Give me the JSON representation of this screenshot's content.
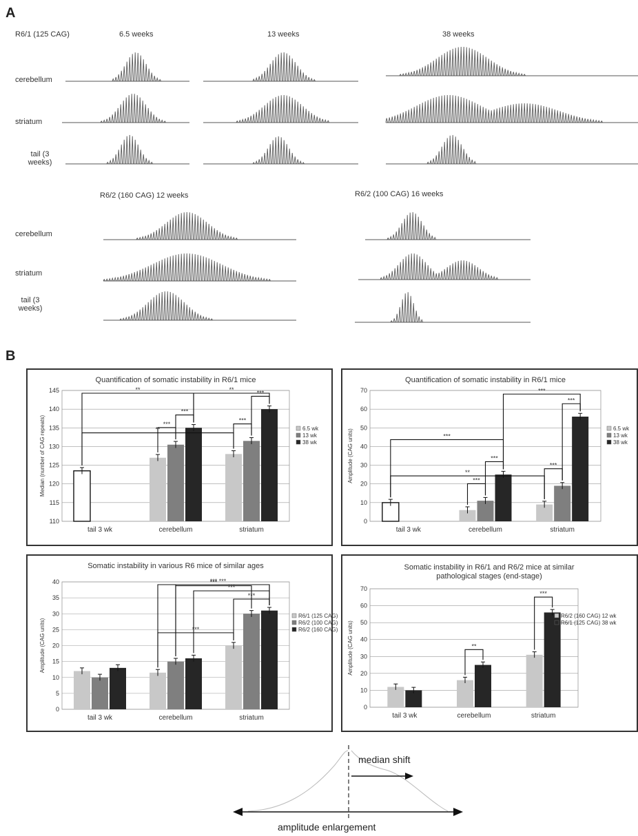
{
  "panel_a": {
    "letter": "A",
    "r61_header": "R6/1 (125 CAG)",
    "r61_ages": [
      "6.5 weeks",
      "13 weeks",
      "38 weeks"
    ],
    "r61_rows": [
      "cerebellum",
      "striatum",
      "tail (3 weeks)"
    ],
    "r62_header_a": "R6/2 (160 CAG) 12 weeks",
    "r62_header_b": "R6/2 (100 CAG) 16 weeks",
    "r62_rows": [
      "cerebellum",
      "striatum",
      "tail (3 weeks)"
    ]
  },
  "panel_b": {
    "letter": "B"
  },
  "diagram": {
    "median_shift": "median shift",
    "amplitude_enlargement": "amplitude enlargement"
  },
  "chart_data": [
    {
      "type": "bar",
      "title": "Quantification of somatic instability in R6/1 mice",
      "ylabel": "Median (number of CAG repeats)",
      "ylim": [
        110,
        145
      ],
      "yticks": [
        110,
        115,
        120,
        125,
        130,
        135,
        140,
        145
      ],
      "categories": [
        "tail 3 wk",
        "cerebellum",
        "striatum"
      ],
      "series": [
        {
          "name": "6.5 wk",
          "values": [
            123.5,
            127,
            128
          ],
          "color": "#c8c8c8"
        },
        {
          "name": "13 wk",
          "values": [
            null,
            130.5,
            131.5
          ],
          "color": "#7f7f7f"
        },
        {
          "name": "38 wk",
          "values": [
            null,
            135,
            140
          ],
          "color": "#262626"
        }
      ],
      "tail_color": "#ffffff",
      "significance": [
        "***",
        "***",
        "***",
        "***",
        "**",
        "**",
        "**"
      ]
    },
    {
      "type": "bar",
      "title": "Quantification of somatic instability in R6/1 mice",
      "ylabel": "Amplitude (CAG units)",
      "ylim": [
        0,
        70
      ],
      "yticks": [
        0,
        10,
        20,
        30,
        40,
        50,
        60,
        70
      ],
      "categories": [
        "tail 3 wk",
        "cerebellum",
        "striatum"
      ],
      "series": [
        {
          "name": "6.5 wk",
          "values": [
            10,
            6,
            9
          ],
          "color": "#c8c8c8"
        },
        {
          "name": "13 wk",
          "values": [
            null,
            11,
            19
          ],
          "color": "#7f7f7f"
        },
        {
          "name": "38 wk",
          "values": [
            null,
            25,
            56
          ],
          "color": "#262626"
        }
      ],
      "tail_color": "#ffffff",
      "significance": [
        "***",
        "***",
        "***",
        "***",
        "***",
        "**"
      ]
    },
    {
      "type": "bar",
      "title": "Somatic instability in various R6 mice of similar ages",
      "ylabel": "Amplitude (CAG units)",
      "ylim": [
        0,
        40
      ],
      "yticks": [
        0,
        5,
        10,
        15,
        20,
        25,
        30,
        35,
        40
      ],
      "categories": [
        "tail 3 wk",
        "cerebellum",
        "striatum"
      ],
      "series": [
        {
          "name": "R6/1 (125 CAG)",
          "values": [
            12,
            11.5,
            20
          ],
          "color": "#c8c8c8"
        },
        {
          "name": "R6/2 (100 CAG)",
          "values": [
            10,
            15,
            30
          ],
          "color": "#7f7f7f"
        },
        {
          "name": "R6/2 (160 CAG)",
          "values": [
            13,
            16,
            31
          ],
          "color": "#262626"
        }
      ],
      "significance": [
        "***",
        "***",
        "***",
        "***",
        "***",
        "***"
      ]
    },
    {
      "type": "bar",
      "title": "Somatic instability in R6/1 and R6/2 mice at similar pathological stages (end-stage)",
      "ylabel": "Amplitude (CAG units)",
      "ylim": [
        0,
        70
      ],
      "yticks": [
        0,
        10,
        20,
        30,
        40,
        50,
        60,
        70
      ],
      "categories": [
        "tail 3 wk",
        "cerebellum",
        "striatum"
      ],
      "series": [
        {
          "name": "R6/2 (160 CAG) 12 wk",
          "values": [
            12,
            16,
            31
          ],
          "color": "#c8c8c8"
        },
        {
          "name": "R6/1 (125 CAG) 38 wk",
          "values": [
            10,
            25,
            56
          ],
          "color": "#262626"
        }
      ],
      "significance": [
        "**",
        "***"
      ]
    }
  ]
}
